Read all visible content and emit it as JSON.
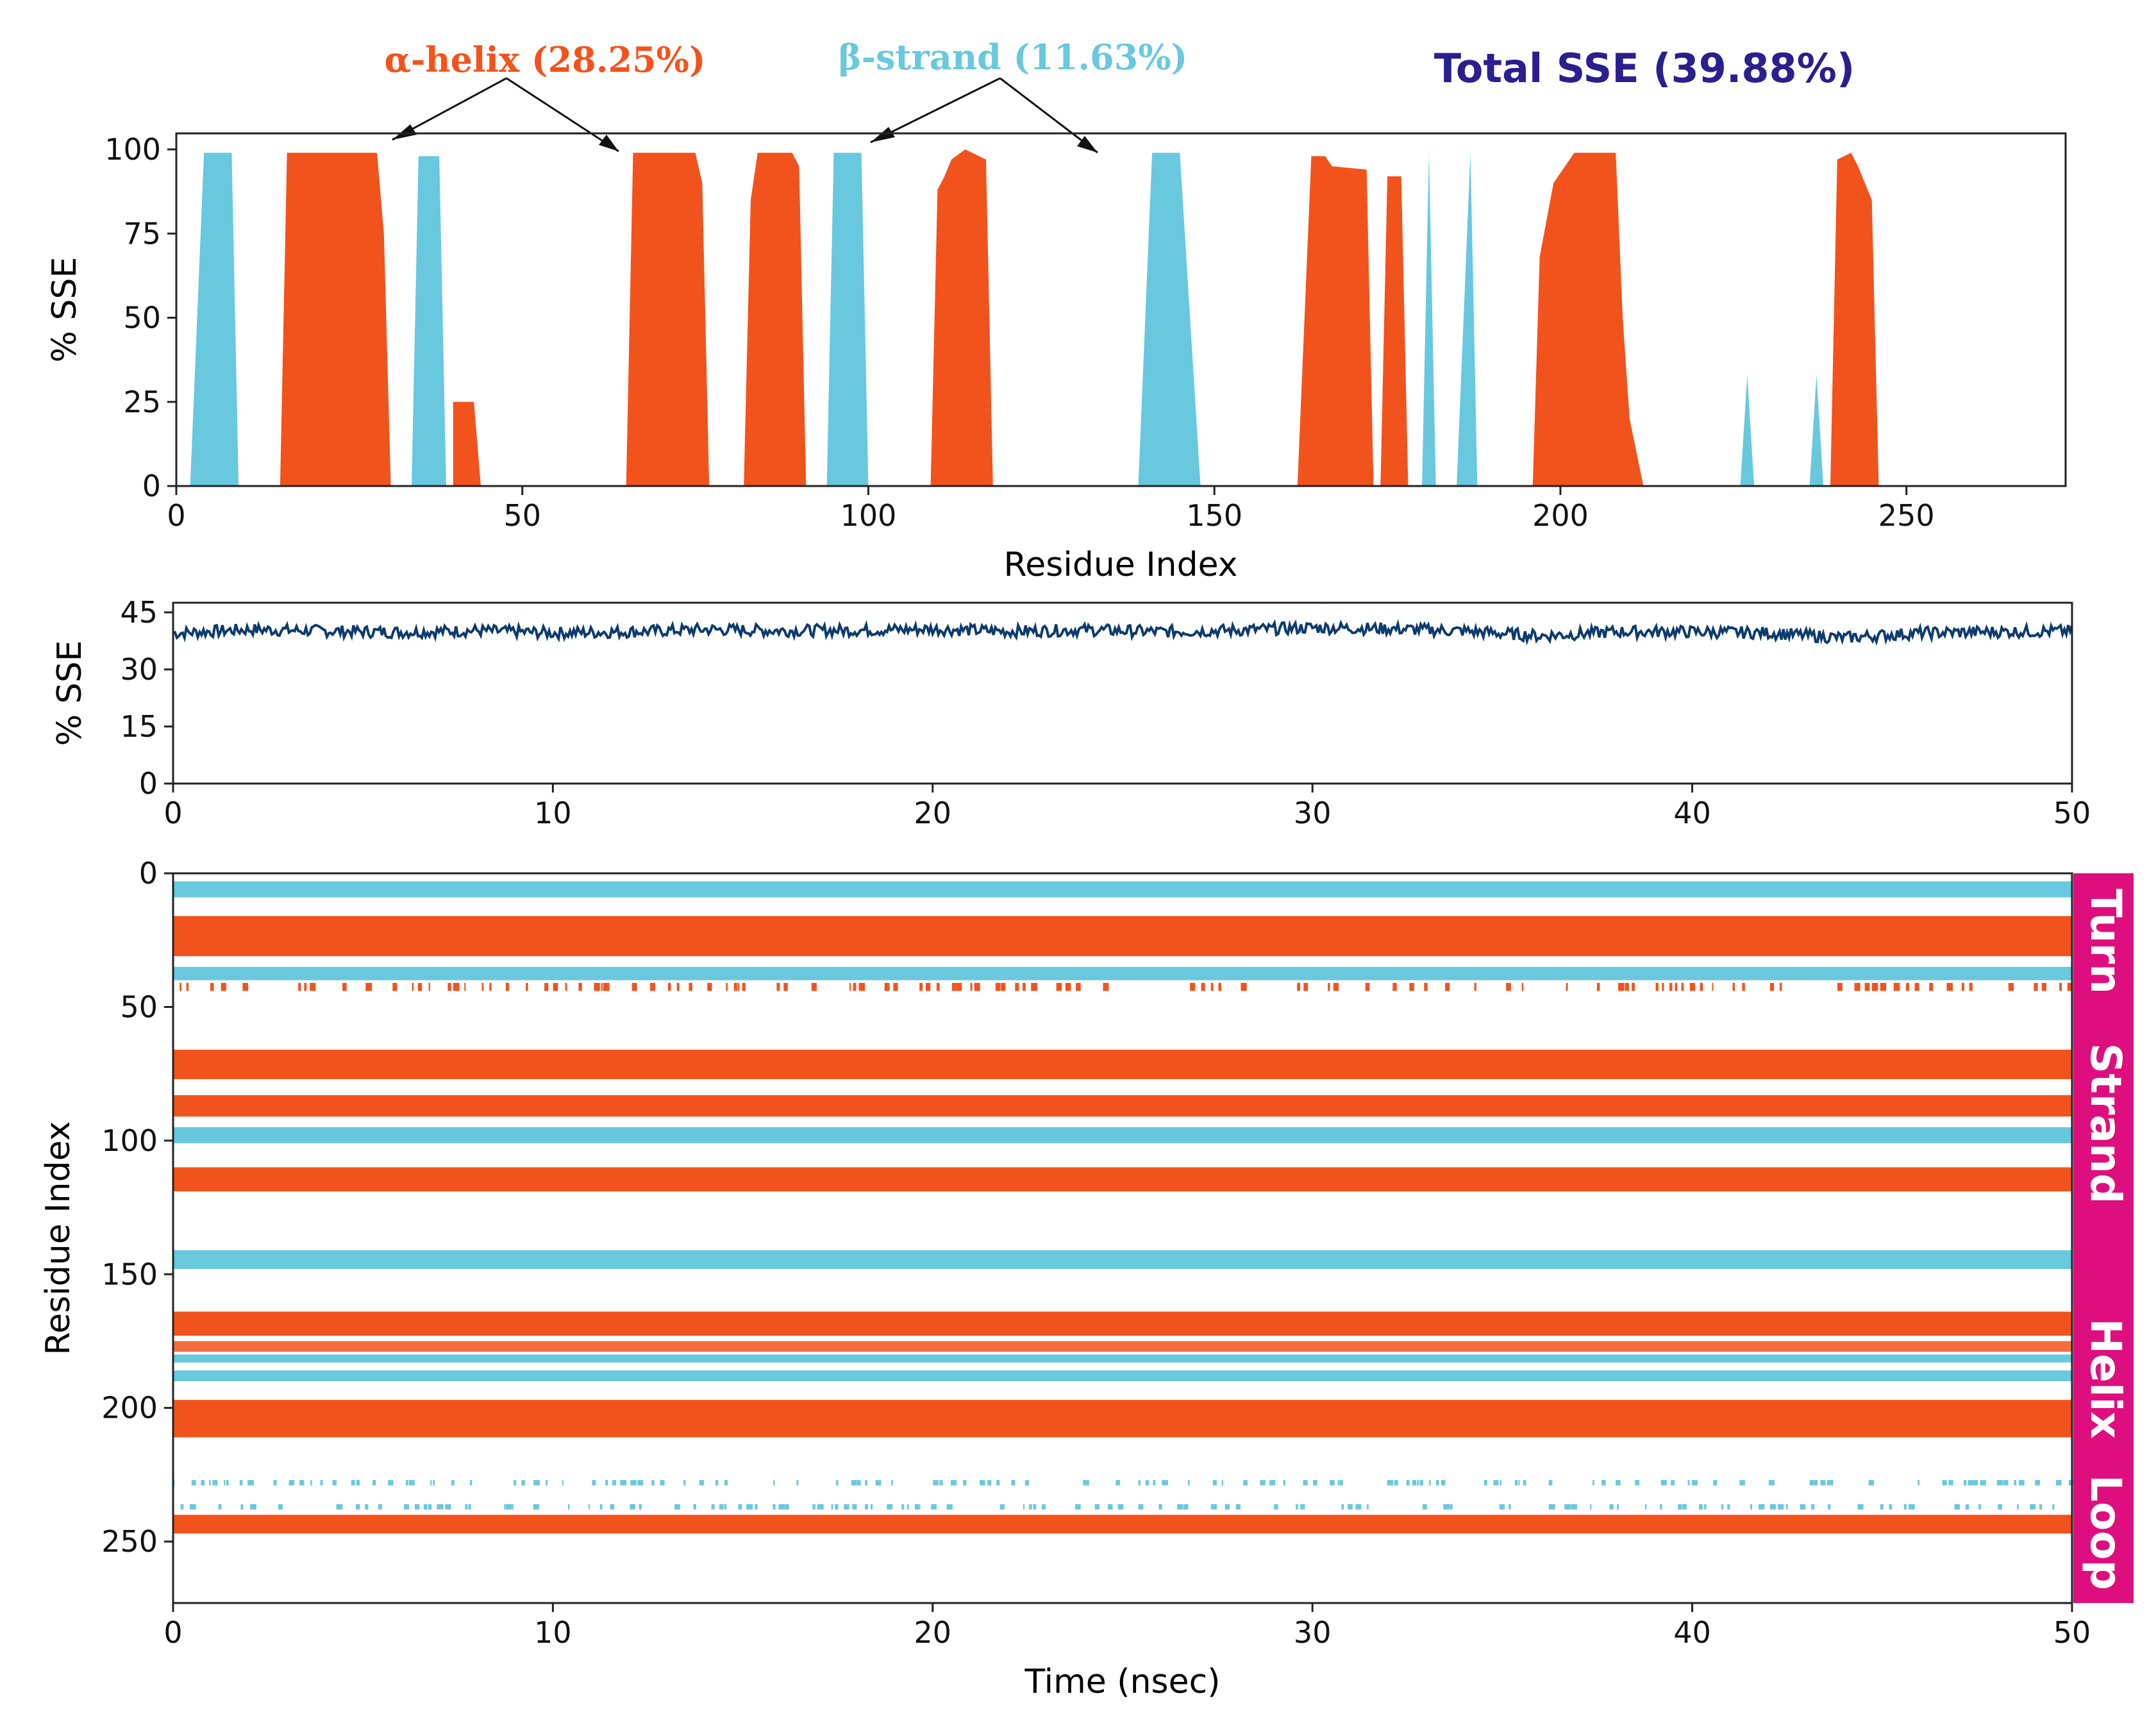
{
  "colors": {
    "helix": "#f2531c",
    "strand": "#68c8de",
    "line": "#0d3b6e",
    "total": "#2b1e8f",
    "sidebar": "#de0e7e",
    "axis": "#222222"
  },
  "annotations": {
    "helix": "α-helix (28.25%)",
    "strand": "β-strand (11.63%)",
    "total": "Total SSE (39.88%)"
  },
  "chart_data": [
    {
      "id": "sse-per-residue",
      "type": "area",
      "xlabel": "Residue Index",
      "ylabel": "% SSE",
      "xlim": [
        0,
        273
      ],
      "ylim": [
        0,
        100
      ],
      "xticks": [
        0,
        50,
        100,
        150,
        200,
        250
      ],
      "yticks": [
        0,
        25,
        50,
        75,
        100
      ],
      "series": [
        {
          "name": "α-helix",
          "points": [
            [
              15,
              0
            ],
            [
              16,
              99
            ],
            [
              29,
              99
            ],
            [
              30,
              75
            ],
            [
              31,
              0
            ],
            [
              40,
              0
            ],
            [
              40,
              25
            ],
            [
              43,
              25
            ],
            [
              44,
              0
            ],
            [
              65,
              0
            ],
            [
              66,
              99
            ],
            [
              75,
              99
            ],
            [
              76,
              90
            ],
            [
              77,
              0
            ],
            [
              82,
              0
            ],
            [
              83,
              85
            ],
            [
              84,
              99
            ],
            [
              89,
              99
            ],
            [
              90,
              95
            ],
            [
              91,
              0
            ],
            [
              109,
              0
            ],
            [
              110,
              88
            ],
            [
              111,
              92
            ],
            [
              112,
              97
            ],
            [
              114,
              100
            ],
            [
              117,
              97
            ],
            [
              118,
              0
            ],
            [
              162,
              0
            ],
            [
              164,
              98
            ],
            [
              166,
              98
            ],
            [
              167,
              95
            ],
            [
              172,
              94
            ],
            [
              173,
              0
            ],
            [
              174,
              0
            ],
            [
              175,
              92
            ],
            [
              177,
              92
            ],
            [
              178,
              0
            ],
            [
              196,
              0
            ],
            [
              197,
              68
            ],
            [
              199,
              90
            ],
            [
              202,
              99
            ],
            [
              208,
              99
            ],
            [
              209,
              50
            ],
            [
              210,
              20
            ],
            [
              212,
              0
            ],
            [
              239,
              0
            ],
            [
              240,
              97
            ],
            [
              242,
              99
            ],
            [
              243,
              95
            ],
            [
              245,
              85
            ],
            [
              246,
              0
            ]
          ]
        },
        {
          "name": "β-strand",
          "points": [
            [
              2,
              0
            ],
            [
              4,
              99
            ],
            [
              8,
              99
            ],
            [
              9,
              0
            ],
            [
              34,
              0
            ],
            [
              35,
              98
            ],
            [
              38,
              98
            ],
            [
              39,
              0
            ],
            [
              94,
              0
            ],
            [
              95,
              99
            ],
            [
              99,
              99
            ],
            [
              100,
              0
            ],
            [
              139,
              0
            ],
            [
              141,
              99
            ],
            [
              145,
              99
            ],
            [
              148,
              0
            ],
            [
              180,
              0
            ],
            [
              181,
              99
            ],
            [
              182,
              0
            ],
            [
              185,
              0
            ],
            [
              187,
              99
            ],
            [
              188,
              0
            ],
            [
              226,
              0
            ],
            [
              227,
              33
            ],
            [
              228,
              0
            ],
            [
              236,
              0
            ],
            [
              237,
              33
            ],
            [
              238,
              0
            ]
          ]
        }
      ]
    },
    {
      "id": "sse-over-time",
      "type": "line",
      "xlabel": "",
      "ylabel": "% SSE",
      "xlim": [
        0,
        50
      ],
      "ylim": [
        0,
        45
      ],
      "xticks": [
        0,
        10,
        20,
        30,
        40,
        50
      ],
      "yticks": [
        0,
        15,
        30,
        45
      ],
      "series": [
        {
          "name": "Total SSE",
          "x": [
            0,
            2,
            4,
            6,
            8,
            10,
            12,
            14,
            16,
            18,
            20,
            22,
            24,
            26,
            28,
            30,
            32,
            34,
            36,
            38,
            40,
            42,
            44,
            46,
            48,
            50
          ],
          "values": [
            39.5,
            40.5,
            40.1,
            39.8,
            40.2,
            39.6,
            39.9,
            40.5,
            40.2,
            40.3,
            40.6,
            40.0,
            40.4,
            39.9,
            40.3,
            41.0,
            40.7,
            40.1,
            38.8,
            39.9,
            39.9,
            39.6,
            38.3,
            39.6,
            39.9,
            40.1
          ]
        }
      ]
    },
    {
      "id": "sse-timeline",
      "type": "heatmap",
      "xlabel": "Time (nsec)",
      "ylabel": "Residue Index",
      "xlim": [
        0,
        50
      ],
      "ylim": [
        273,
        0
      ],
      "xticks": [
        0,
        10,
        20,
        30,
        40,
        50
      ],
      "yticks": [
        0,
        50,
        100,
        150,
        200,
        250
      ],
      "legend": [
        "Turn",
        "Strand",
        "Helix",
        "Loop"
      ],
      "bands": [
        {
          "ss": "strand",
          "start": 3,
          "end": 8
        },
        {
          "ss": "helix",
          "start": 16,
          "end": 30
        },
        {
          "ss": "strand",
          "start": 35,
          "end": 39
        },
        {
          "ss": "helix",
          "start": 41,
          "end": 43,
          "pattern": "intermittent"
        },
        {
          "ss": "helix",
          "start": 66,
          "end": 76
        },
        {
          "ss": "helix",
          "start": 83,
          "end": 90
        },
        {
          "ss": "strand",
          "start": 95,
          "end": 100
        },
        {
          "ss": "helix",
          "start": 110,
          "end": 118
        },
        {
          "ss": "strand",
          "start": 141,
          "end": 147
        },
        {
          "ss": "helix",
          "start": 164,
          "end": 172
        },
        {
          "ss": "helix",
          "start": 175,
          "end": 178,
          "pattern": "partial"
        },
        {
          "ss": "strand",
          "start": 180,
          "end": 182
        },
        {
          "ss": "strand",
          "start": 186,
          "end": 189
        },
        {
          "ss": "helix",
          "start": 197,
          "end": 210
        },
        {
          "ss": "strand",
          "start": 227,
          "end": 228,
          "pattern": "intermittent"
        },
        {
          "ss": "strand",
          "start": 236,
          "end": 237,
          "pattern": "intermittent"
        },
        {
          "ss": "helix",
          "start": 240,
          "end": 246
        }
      ]
    }
  ]
}
